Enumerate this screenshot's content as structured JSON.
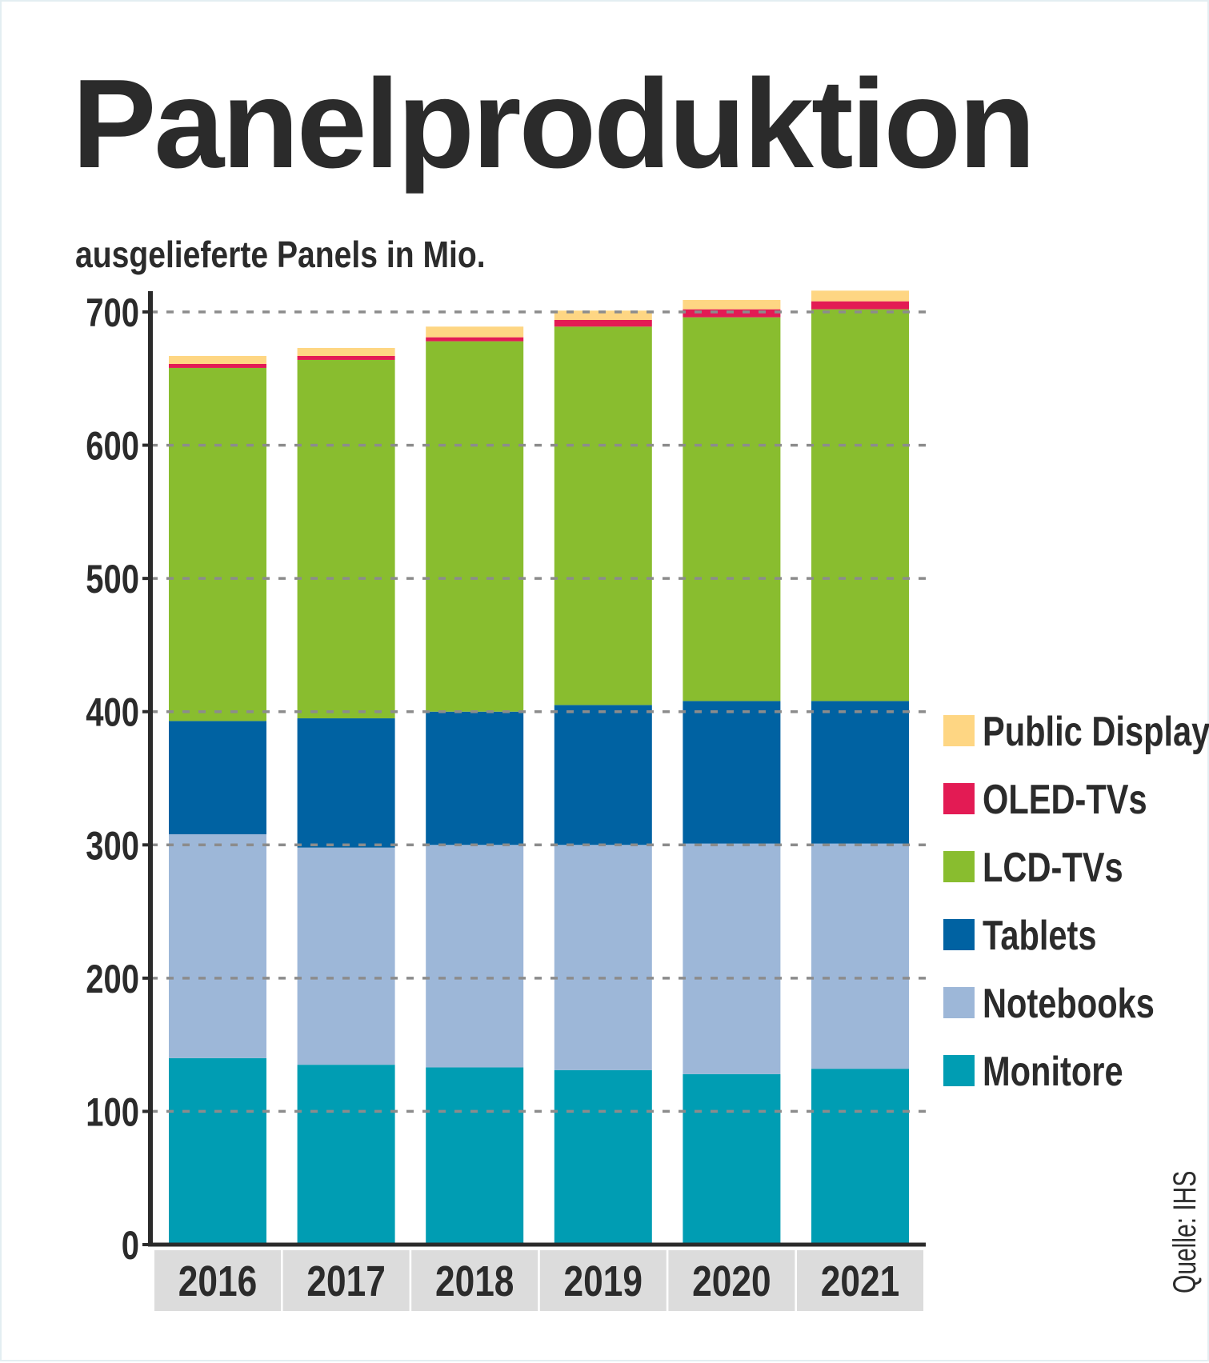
{
  "chart_data": {
    "type": "bar",
    "stacked": true,
    "title": "Panelproduktion",
    "subtitle": "ausgelieferte Panels in Mio.",
    "source": "Quelle: IHS",
    "categories": [
      "2016",
      "2017",
      "2018",
      "2019",
      "2020",
      "2021"
    ],
    "ylim": [
      0,
      700
    ],
    "yticks": [
      0,
      100,
      200,
      300,
      400,
      500,
      600,
      700
    ],
    "grid": true,
    "legend_position": "right",
    "series": [
      {
        "name": "Monitore",
        "color": "#009db3",
        "values": [
          140,
          135,
          133,
          131,
          128,
          132
        ]
      },
      {
        "name": "Notebooks",
        "color": "#9db7d8",
        "values": [
          168,
          163,
          167,
          169,
          173,
          169
        ]
      },
      {
        "name": "Tablets",
        "color": "#0062a2",
        "values": [
          85,
          97,
          100,
          105,
          107,
          107
        ]
      },
      {
        "name": "LCD-TVs",
        "color": "#89bd2f",
        "values": [
          265,
          269,
          278,
          284,
          288,
          294
        ]
      },
      {
        "name": "OLED-TVs",
        "color": "#e31b54",
        "values": [
          3,
          3,
          3,
          5,
          6,
          6
        ]
      },
      {
        "name": "Public Displays",
        "color": "#fed683",
        "values": [
          6,
          6,
          8,
          7,
          7,
          8
        ]
      }
    ]
  }
}
